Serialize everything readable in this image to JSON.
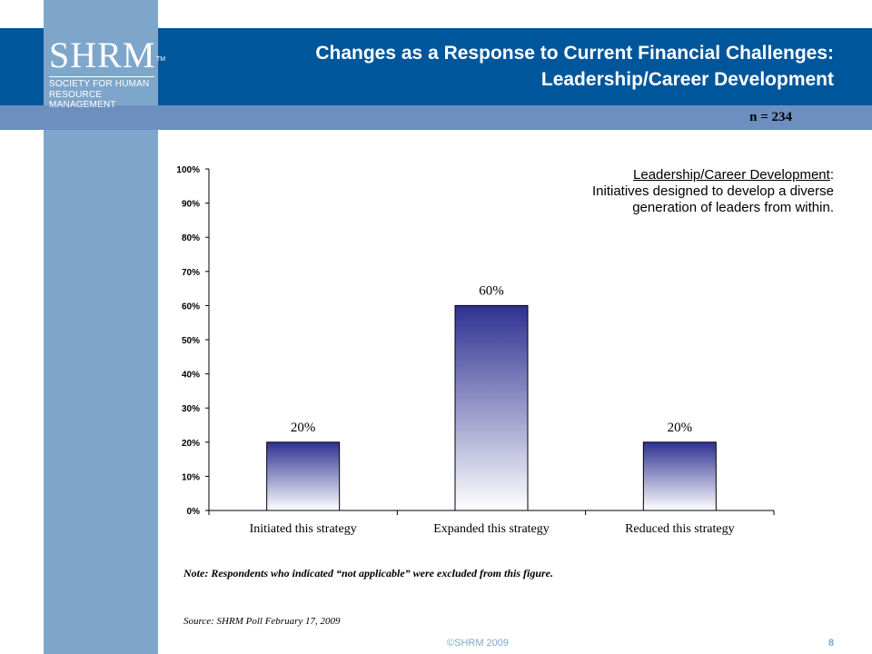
{
  "logo": {
    "mark": "SHRM",
    "tm": "TM",
    "line1": "SOCIETY FOR HUMAN",
    "line2": "RESOURCE MANAGEMENT"
  },
  "header": {
    "title_line1": "Changes as a Response to Current Financial Challenges:",
    "title_line2": "Leadership/Career Development",
    "n_label": "n = 234"
  },
  "definition": {
    "term": "Leadership/Career Development",
    "sep": ":",
    "text": "Initiatives designed to develop a diverse generation of leaders from within."
  },
  "colors": {
    "header": "#00569b",
    "sidebar": "#7ea6cb",
    "subbar": "#6c8fbf",
    "bar_top": "#2e3192",
    "bar_bottom": "#ffffff"
  },
  "chart_data": {
    "type": "bar",
    "categories": [
      "Initiated this strategy",
      "Expanded this strategy",
      "Reduced this strategy"
    ],
    "values": [
      20,
      60,
      20
    ],
    "data_labels": [
      "20%",
      "60%",
      "20%"
    ],
    "ylim": [
      0,
      100
    ],
    "yticks": [
      "0%",
      "10%",
      "20%",
      "30%",
      "40%",
      "50%",
      "60%",
      "70%",
      "80%",
      "90%",
      "100%"
    ],
    "xlabel": "",
    "ylabel": "",
    "grid": false,
    "legend": "none"
  },
  "footer": {
    "note": "Note: Respondents who indicated “not applicable” were excluded from this figure.",
    "source": "Source: SHRM Poll February 17, 2009",
    "copyright": "©SHRM 2009",
    "page": "8"
  }
}
